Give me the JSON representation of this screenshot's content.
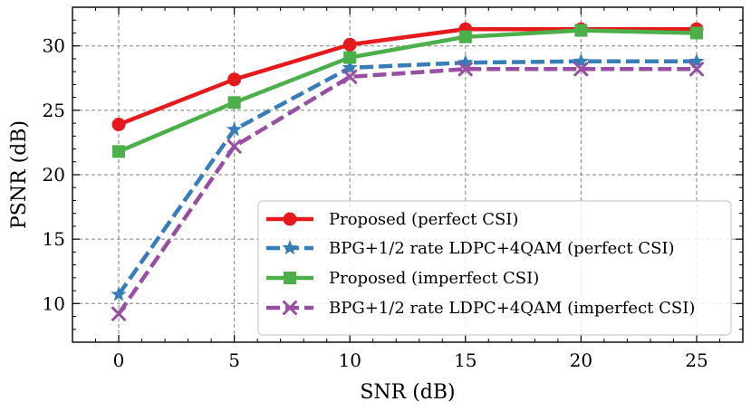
{
  "chart_data": {
    "type": "line",
    "title": "",
    "xlabel": "SNR (dB)",
    "ylabel": "PSNR (dB)",
    "xlim": [
      -2,
      27
    ],
    "ylim": [
      7,
      33
    ],
    "xticks": [
      0,
      5,
      10,
      15,
      20,
      25
    ],
    "yticks": [
      10,
      15,
      20,
      25,
      30
    ],
    "grid": true,
    "legend_position": "lower-right",
    "x": [
      0,
      5,
      10,
      15,
      20,
      25
    ],
    "series": [
      {
        "name": "Proposed (perfect CSI)",
        "values": [
          23.9,
          27.4,
          30.1,
          31.3,
          31.3,
          31.3
        ],
        "color": "#e41a1c",
        "dash": "solid",
        "marker": "circle"
      },
      {
        "name": "BPG+1/2 rate LDPC+4QAM (perfect CSI)",
        "values": [
          10.7,
          23.5,
          28.3,
          28.7,
          28.8,
          28.8
        ],
        "color": "#377eb8",
        "dash": "dashed",
        "marker": "star"
      },
      {
        "name": "Proposed (imperfect CSI)",
        "values": [
          21.8,
          25.6,
          29.1,
          30.7,
          31.2,
          31.0
        ],
        "color": "#4daf4a",
        "dash": "solid",
        "marker": "square"
      },
      {
        "name": "BPG+1/2 rate LDPC+4QAM (imperfect CSI)",
        "values": [
          9.2,
          22.2,
          27.6,
          28.2,
          28.2,
          28.2
        ],
        "color": "#984ea3",
        "dash": "dashed",
        "marker": "x"
      }
    ]
  }
}
